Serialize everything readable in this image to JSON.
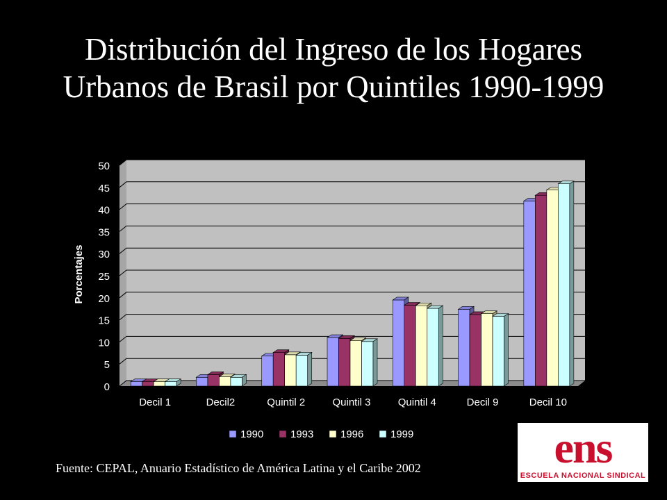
{
  "title": "Distribución del Ingreso de los Hogares Urbanos de Brasil por Quintiles 1990-1999",
  "source": "Fuente: CEPAL, Anuario Estadístico de América Latina y el Caribe 2002",
  "logo": {
    "wordmark": "ens",
    "subtext": "ESCUELA NACIONAL SINDICAL"
  },
  "colors": {
    "background": "#000000",
    "plot_area": "#c0c0c0",
    "logo_red": "#c8102e"
  },
  "chart_data": {
    "type": "bar",
    "title": "",
    "xlabel": "",
    "ylabel": "Porcentajes",
    "ylim": [
      0,
      50
    ],
    "yticks": [
      0,
      5,
      10,
      15,
      20,
      25,
      30,
      35,
      40,
      45,
      50
    ],
    "grid": true,
    "legend": "bottom",
    "categories": [
      "Decil 1",
      "Decil2",
      "Quintil 2",
      "Quintil 3",
      "Quintil 4",
      "Decil 9",
      "Decil 10"
    ],
    "series": [
      {
        "name": "1990",
        "color": "#9999ff",
        "values": [
          1.0,
          2.0,
          6.8,
          11.0,
          19.5,
          17.4,
          41.9
        ]
      },
      {
        "name": "1993",
        "color": "#993366",
        "values": [
          1.0,
          2.6,
          7.6,
          10.8,
          18.3,
          16.2,
          43.2
        ]
      },
      {
        "name": "1996",
        "color": "#ffffcc",
        "values": [
          1.0,
          2.1,
          7.1,
          10.3,
          18.2,
          16.4,
          44.4
        ]
      },
      {
        "name": "1999",
        "color": "#ccffff",
        "values": [
          1.0,
          2.0,
          7.0,
          10.1,
          17.6,
          15.8,
          45.8
        ]
      }
    ]
  }
}
